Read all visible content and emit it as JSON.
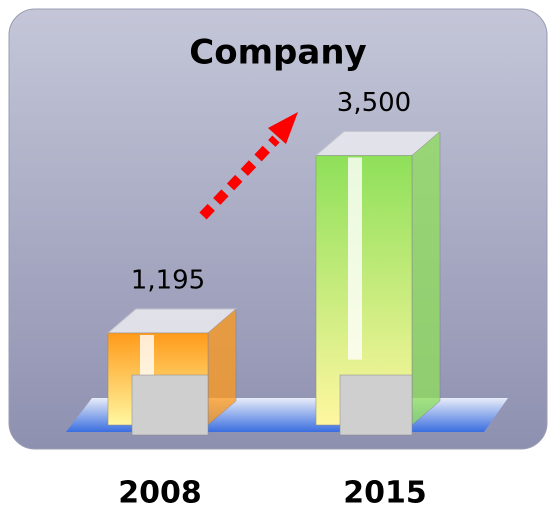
{
  "chart_data": {
    "type": "bar3d",
    "title": "Company",
    "categories": [
      "2008",
      "2015"
    ],
    "values": [
      1195,
      3500
    ],
    "value_labels": [
      "1,195",
      "3,500"
    ],
    "colors": [
      "#ff9a1a",
      "#8ee05a"
    ]
  }
}
